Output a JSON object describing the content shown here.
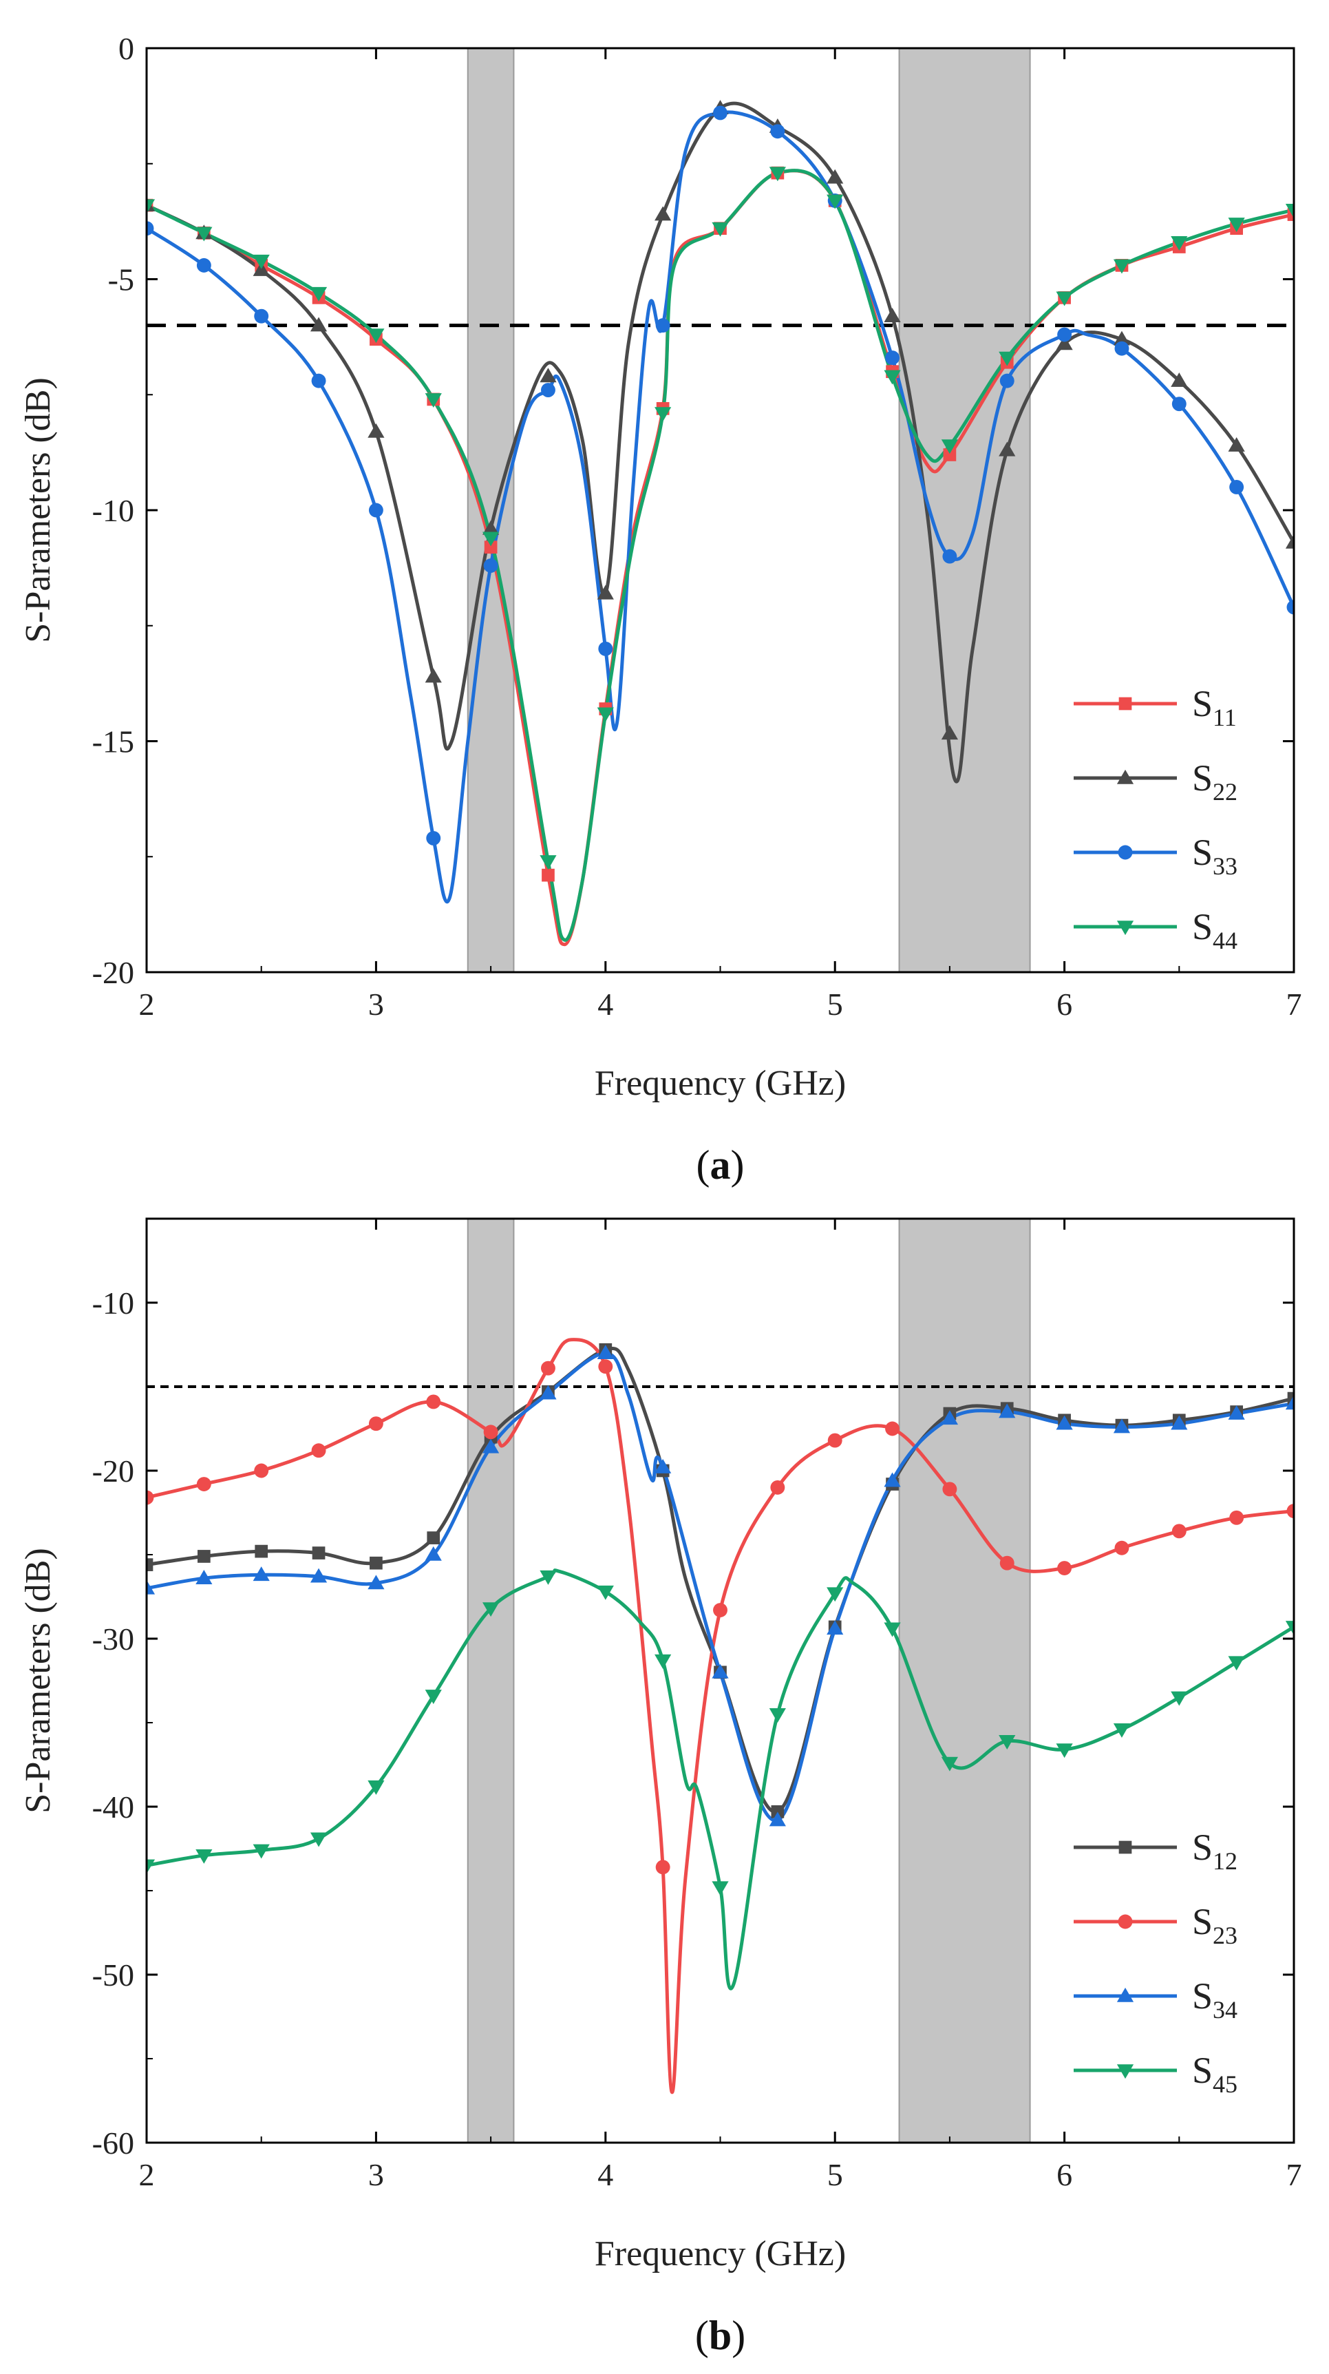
{
  "colors": {
    "red": "#ee4b4b",
    "dark": "#4a4a4a",
    "blue": "#1f6fd8",
    "green": "#18a56b",
    "band": "#c4c4c4"
  },
  "chart_data": [
    {
      "type": "line",
      "id": "a",
      "caption": {
        "open": "(",
        "letter": "a",
        "close": ")"
      },
      "xlabel": "Frequency (GHz)",
      "ylabel": "S-Parameters (dB)",
      "xlim": [
        2,
        7
      ],
      "ylim": [
        -20,
        0
      ],
      "xticks": [
        2,
        3,
        4,
        5,
        6,
        7
      ],
      "yticks": [
        0,
        -5,
        -10,
        -15,
        -20
      ],
      "xtick_labels": [
        "2",
        "3",
        "4",
        "5",
        "6",
        "7"
      ],
      "ytick_labels": [
        "0",
        "-5",
        "-10",
        "-15",
        "-20"
      ],
      "bands": [
        [
          3.4,
          3.6
        ],
        [
          5.28,
          5.85
        ]
      ],
      "threshold": -6,
      "legend_position": "bottom-right",
      "series": [
        {
          "name": "S11",
          "label_main": "S",
          "label_sub": "11",
          "color": "#ee4b4b",
          "marker": "square",
          "x": [
            2.0,
            2.25,
            2.5,
            2.75,
            3.0,
            3.25,
            3.5,
            3.75,
            3.82,
            3.9,
            4.0,
            4.12,
            4.25,
            4.3,
            4.5,
            4.75,
            5.0,
            5.25,
            5.4,
            5.5,
            5.75,
            6.0,
            6.25,
            6.5,
            6.75,
            7.0
          ],
          "y": [
            -3.4,
            -4.0,
            -4.7,
            -5.4,
            -6.3,
            -7.6,
            -10.8,
            -17.9,
            -19.4,
            -18.0,
            -14.3,
            -10.5,
            -7.8,
            -4.6,
            -3.9,
            -2.7,
            -3.3,
            -7.0,
            -9.0,
            -8.8,
            -6.8,
            -5.4,
            -4.7,
            -4.3,
            -3.9,
            -3.6
          ],
          "marker_x": [
            2.0,
            2.25,
            2.5,
            2.75,
            3.0,
            3.25,
            3.5,
            3.75,
            4.0,
            4.25,
            4.5,
            4.75,
            5.0,
            5.25,
            5.5,
            5.75,
            6.0,
            6.25,
            6.5,
            6.75,
            7.0
          ]
        },
        {
          "name": "S22",
          "label_main": "S",
          "label_sub": "22",
          "color": "#4a4a4a",
          "marker": "triangle-up",
          "x": [
            2.0,
            2.25,
            2.5,
            2.75,
            3.0,
            3.25,
            3.33,
            3.5,
            3.7,
            3.8,
            3.9,
            4.0,
            4.1,
            4.25,
            4.5,
            4.75,
            5.0,
            5.25,
            5.4,
            5.52,
            5.6,
            5.75,
            6.0,
            6.25,
            6.5,
            6.75,
            7.0
          ],
          "y": [
            -3.4,
            -4.0,
            -4.8,
            -6.0,
            -8.3,
            -13.6,
            -15.0,
            -10.4,
            -7.2,
            -7.0,
            -8.5,
            -11.8,
            -6.4,
            -3.6,
            -1.3,
            -1.7,
            -2.8,
            -5.8,
            -10.0,
            -15.8,
            -13.0,
            -8.7,
            -6.4,
            -6.3,
            -7.2,
            -8.6,
            -10.7
          ],
          "marker_x": [
            2.0,
            2.25,
            2.5,
            2.75,
            3.0,
            3.25,
            3.5,
            3.75,
            4.0,
            4.25,
            4.5,
            4.75,
            5.0,
            5.25,
            5.5,
            5.75,
            6.0,
            6.25,
            6.5,
            6.75,
            7.0
          ]
        },
        {
          "name": "S33",
          "label_main": "S",
          "label_sub": "33",
          "color": "#1f6fd8",
          "marker": "circle",
          "x": [
            2.0,
            2.25,
            2.5,
            2.75,
            3.0,
            3.15,
            3.25,
            3.32,
            3.4,
            3.5,
            3.65,
            3.75,
            3.8,
            3.9,
            4.0,
            4.05,
            4.12,
            4.19,
            4.25,
            4.35,
            4.5,
            4.75,
            5.0,
            5.25,
            5.4,
            5.5,
            5.6,
            5.75,
            6.0,
            6.1,
            6.25,
            6.5,
            6.75,
            7.0
          ],
          "y": [
            -3.9,
            -4.7,
            -5.8,
            -7.2,
            -10.0,
            -14.0,
            -17.1,
            -18.4,
            -15.0,
            -11.2,
            -8.0,
            -7.4,
            -7.2,
            -9.0,
            -13.0,
            -14.6,
            -9.5,
            -5.6,
            -6.0,
            -2.2,
            -1.4,
            -1.8,
            -3.3,
            -6.7,
            -9.8,
            -11.0,
            -10.5,
            -7.2,
            -6.2,
            -6.2,
            -6.5,
            -7.7,
            -9.5,
            -12.1
          ],
          "marker_x": [
            2.0,
            2.25,
            2.5,
            2.75,
            3.0,
            3.25,
            3.5,
            3.75,
            4.0,
            4.25,
            4.5,
            4.75,
            5.0,
            5.25,
            5.5,
            5.75,
            6.0,
            6.25,
            6.5,
            6.75,
            7.0
          ]
        },
        {
          "name": "S44",
          "label_main": "S",
          "label_sub": "44",
          "color": "#18a56b",
          "marker": "triangle-down",
          "x": [
            2.0,
            2.25,
            2.5,
            2.75,
            3.0,
            3.25,
            3.5,
            3.75,
            3.82,
            3.9,
            4.0,
            4.12,
            4.25,
            4.3,
            4.5,
            4.75,
            5.0,
            5.25,
            5.4,
            5.5,
            5.75,
            6.0,
            6.25,
            6.5,
            6.75,
            7.0
          ],
          "y": [
            -3.4,
            -4.0,
            -4.6,
            -5.3,
            -6.2,
            -7.6,
            -10.6,
            -17.6,
            -19.3,
            -18.0,
            -14.4,
            -10.7,
            -7.9,
            -4.7,
            -3.9,
            -2.7,
            -3.3,
            -7.1,
            -8.8,
            -8.6,
            -6.7,
            -5.4,
            -4.7,
            -4.2,
            -3.8,
            -3.5
          ],
          "marker_x": [
            2.0,
            2.25,
            2.5,
            2.75,
            3.0,
            3.25,
            3.5,
            3.75,
            4.0,
            4.25,
            4.5,
            4.75,
            5.0,
            5.25,
            5.5,
            5.75,
            6.0,
            6.25,
            6.5,
            6.75,
            7.0
          ]
        }
      ]
    },
    {
      "type": "line",
      "id": "b",
      "caption": {
        "open": "(",
        "letter": "b",
        "close": ")"
      },
      "xlabel": "Frequency (GHz)",
      "ylabel": "S-Parameters (dB)",
      "xlim": [
        2,
        7
      ],
      "ylim": [
        -60,
        -5
      ],
      "xticks": [
        2,
        3,
        4,
        5,
        6,
        7
      ],
      "yticks": [
        -10,
        -20,
        -30,
        -40,
        -50,
        -60
      ],
      "xtick_labels": [
        "2",
        "3",
        "4",
        "5",
        "6",
        "7"
      ],
      "ytick_labels": [
        "-10",
        "-20",
        "-30",
        "-40",
        "-50",
        "-60"
      ],
      "bands": [
        [
          3.4,
          3.6
        ],
        [
          5.28,
          5.85
        ]
      ],
      "threshold": -15,
      "legend_position": "bottom-right",
      "series": [
        {
          "name": "S12",
          "label_main": "S",
          "label_sub": "12",
          "color": "#4a4a4a",
          "marker": "square",
          "x": [
            2.0,
            2.25,
            2.5,
            2.75,
            3.0,
            3.25,
            3.5,
            3.75,
            4.0,
            4.1,
            4.25,
            4.35,
            4.5,
            4.75,
            5.0,
            5.25,
            5.5,
            5.75,
            6.0,
            6.25,
            6.5,
            6.75,
            7.0
          ],
          "y": [
            -25.6,
            -25.1,
            -24.8,
            -24.9,
            -25.5,
            -24.0,
            -18.0,
            -15.3,
            -12.8,
            -14.0,
            -20.0,
            -26.5,
            -32.0,
            -40.3,
            -29.3,
            -20.8,
            -16.6,
            -16.3,
            -17.0,
            -17.3,
            -17.0,
            -16.5,
            -15.7
          ],
          "marker_x": [
            2.0,
            2.25,
            2.5,
            2.75,
            3.0,
            3.25,
            3.5,
            3.75,
            4.0,
            4.25,
            4.5,
            4.75,
            5.0,
            5.25,
            5.5,
            5.75,
            6.0,
            6.25,
            6.5,
            6.75,
            7.0
          ]
        },
        {
          "name": "S23",
          "label_main": "S",
          "label_sub": "23",
          "color": "#ee4b4b",
          "marker": "circle",
          "x": [
            2.0,
            2.25,
            2.5,
            2.75,
            3.0,
            3.25,
            3.5,
            3.57,
            3.75,
            3.85,
            4.0,
            4.1,
            4.2,
            4.25,
            4.29,
            4.35,
            4.5,
            4.75,
            5.0,
            5.25,
            5.5,
            5.75,
            6.0,
            6.25,
            6.5,
            6.75,
            7.0
          ],
          "y": [
            -21.6,
            -20.8,
            -20.0,
            -18.8,
            -17.2,
            -15.9,
            -17.7,
            -18.3,
            -13.9,
            -12.2,
            -13.8,
            -22.0,
            -36.0,
            -43.6,
            -57.0,
            -44.0,
            -28.3,
            -21.0,
            -18.2,
            -17.5,
            -21.1,
            -25.5,
            -25.8,
            -24.6,
            -23.6,
            -22.8,
            -22.4
          ],
          "marker_x": [
            2.0,
            2.25,
            2.5,
            2.75,
            3.0,
            3.25,
            3.5,
            3.75,
            4.0,
            4.25,
            4.5,
            4.75,
            5.0,
            5.25,
            5.5,
            5.75,
            6.0,
            6.25,
            6.5,
            6.75,
            7.0
          ]
        },
        {
          "name": "S34",
          "label_main": "S",
          "label_sub": "34",
          "color": "#1f6fd8",
          "marker": "triangle-up",
          "x": [
            2.0,
            2.25,
            2.5,
            2.75,
            3.0,
            3.25,
            3.5,
            3.75,
            4.0,
            4.1,
            4.2,
            4.25,
            4.5,
            4.75,
            5.0,
            5.25,
            5.5,
            5.75,
            6.0,
            6.25,
            6.5,
            6.75,
            7.0
          ],
          "y": [
            -27.0,
            -26.4,
            -26.2,
            -26.3,
            -26.7,
            -25.0,
            -18.6,
            -15.4,
            -13.0,
            -15.5,
            -20.5,
            -19.8,
            -32.0,
            -40.8,
            -29.4,
            -20.6,
            -16.9,
            -16.5,
            -17.2,
            -17.4,
            -17.2,
            -16.6,
            -16.0
          ],
          "marker_x": [
            2.0,
            2.25,
            2.5,
            2.75,
            3.0,
            3.25,
            3.5,
            3.75,
            4.0,
            4.25,
            4.5,
            4.75,
            5.0,
            5.25,
            5.5,
            5.75,
            6.0,
            6.25,
            6.5,
            6.75,
            7.0
          ]
        },
        {
          "name": "S45",
          "label_main": "S",
          "label_sub": "45",
          "color": "#18a56b",
          "marker": "triangle-down",
          "x": [
            2.0,
            2.25,
            2.5,
            2.75,
            3.0,
            3.25,
            3.5,
            3.75,
            3.8,
            4.0,
            4.15,
            4.25,
            4.35,
            4.4,
            4.5,
            4.56,
            4.75,
            5.0,
            5.08,
            5.25,
            5.5,
            5.75,
            6.0,
            6.25,
            6.5,
            6.75,
            7.0
          ],
          "y": [
            -43.5,
            -42.9,
            -42.6,
            -41.9,
            -38.8,
            -33.4,
            -28.2,
            -26.3,
            -26.0,
            -27.2,
            -29.0,
            -31.3,
            -38.5,
            -39.0,
            -44.8,
            -50.5,
            -34.5,
            -27.3,
            -26.7,
            -29.4,
            -37.4,
            -36.1,
            -36.6,
            -35.4,
            -33.5,
            -31.4,
            -29.3
          ],
          "marker_x": [
            2.0,
            2.25,
            2.5,
            2.75,
            3.0,
            3.25,
            3.5,
            3.75,
            4.0,
            4.25,
            4.5,
            4.75,
            5.0,
            5.25,
            5.5,
            5.75,
            6.0,
            6.25,
            6.5,
            6.75,
            7.0
          ]
        }
      ]
    }
  ]
}
